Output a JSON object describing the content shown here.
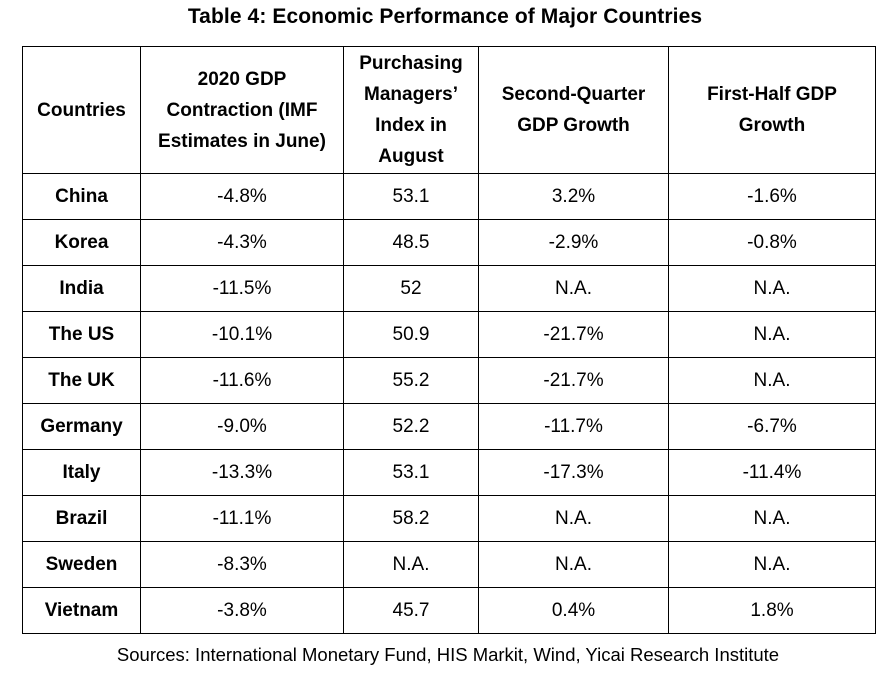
{
  "title": "Table 4: Economic Performance of Major Countries",
  "headers": [
    "Countries",
    "2020 GDP Contraction (IMF Estimates in June)",
    "Purchasing Managers’ Index in August",
    "Second-Quarter GDP Growth",
    "First-Half GDP Growth"
  ],
  "rows": [
    {
      "country": "China",
      "gdp_contraction": "-4.8%",
      "pmi": "53.1",
      "q2_growth": "3.2%",
      "h1_growth": "-1.6%"
    },
    {
      "country": "Korea",
      "gdp_contraction": "-4.3%",
      "pmi": "48.5",
      "q2_growth": "-2.9%",
      "h1_growth": "-0.8%"
    },
    {
      "country": "India",
      "gdp_contraction": "-11.5%",
      "pmi": "52",
      "q2_growth": "N.A.",
      "h1_growth": "N.A."
    },
    {
      "country": "The US",
      "gdp_contraction": "-10.1%",
      "pmi": "50.9",
      "q2_growth": "-21.7%",
      "h1_growth": "N.A."
    },
    {
      "country": "The UK",
      "gdp_contraction": "-11.6%",
      "pmi": "55.2",
      "q2_growth": "-21.7%",
      "h1_growth": "N.A."
    },
    {
      "country": "Germany",
      "gdp_contraction": "-9.0%",
      "pmi": "52.2",
      "q2_growth": "-11.7%",
      "h1_growth": "-6.7%"
    },
    {
      "country": "Italy",
      "gdp_contraction": "-13.3%",
      "pmi": "53.1",
      "q2_growth": "-17.3%",
      "h1_growth": "-11.4%"
    },
    {
      "country": "Brazil",
      "gdp_contraction": "-11.1%",
      "pmi": "58.2",
      "q2_growth": "N.A.",
      "h1_growth": "N.A."
    },
    {
      "country": "Sweden",
      "gdp_contraction": "-8.3%",
      "pmi": "N.A.",
      "q2_growth": "N.A.",
      "h1_growth": "N.A."
    },
    {
      "country": "Vietnam",
      "gdp_contraction": "-3.8%",
      "pmi": "45.7",
      "q2_growth": "0.4%",
      "h1_growth": "1.8%"
    }
  ],
  "source": "Sources: International Monetary Fund, HIS Markit, Wind, Yicai Research Institute"
}
